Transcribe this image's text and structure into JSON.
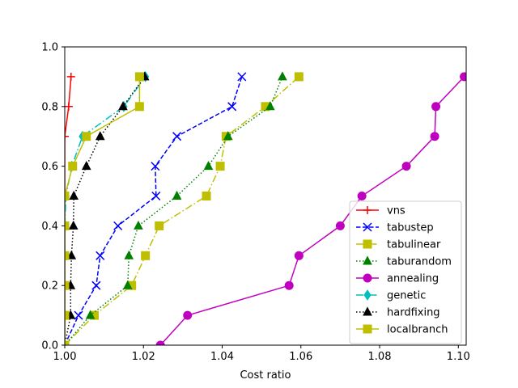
{
  "chart_data": {
    "type": "line",
    "title": "",
    "xlabel": "Cost ratio",
    "ylabel": "",
    "xlim": [
      1.0,
      1.102
    ],
    "ylim": [
      0.0,
      1.0
    ],
    "grid": false,
    "legend_position": "lower-right",
    "xticks": [
      "1.00",
      "1.02",
      "1.04",
      "1.06",
      "1.08",
      "1.10"
    ],
    "yticks": [
      "0.0",
      "0.2",
      "0.4",
      "0.6",
      "0.8",
      "1.0"
    ],
    "series": [
      {
        "name": "vns",
        "color": "#ff0000",
        "marker": "plus",
        "dash": "solid",
        "x": [
          1.0,
          1.0,
          1.001,
          1.0016
        ],
        "y": [
          0.0,
          0.7,
          0.8,
          0.9
        ]
      },
      {
        "name": "tabustep",
        "color": "#0000ff",
        "marker": "x",
        "dash": "dashed",
        "x": [
          1.0,
          1.0035,
          1.008,
          1.009,
          1.0135,
          1.0232,
          1.023,
          1.0285,
          1.0425,
          1.045
        ],
        "y": [
          0.0,
          0.1,
          0.2,
          0.3,
          0.4,
          0.5,
          0.6,
          0.7,
          0.8,
          0.9
        ]
      },
      {
        "name": "tabulinear",
        "color": "#bfbf00",
        "marker": "square",
        "dash": "dashdot",
        "x": [
          1.0,
          1.0075,
          1.017,
          1.0205,
          1.024,
          1.036,
          1.0395,
          1.041,
          1.051,
          1.0595
        ],
        "y": [
          0.0,
          0.1,
          0.2,
          0.3,
          0.4,
          0.5,
          0.6,
          0.7,
          0.8,
          0.9
        ]
      },
      {
        "name": "taburandom",
        "color": "#008000",
        "marker": "triangle",
        "dash": "dotted",
        "x": [
          1.0,
          1.0065,
          1.016,
          1.0163,
          1.0187,
          1.0285,
          1.0365,
          1.0415,
          1.0522,
          1.0553
        ],
        "y": [
          0.0,
          0.1,
          0.2,
          0.3,
          0.4,
          0.5,
          0.6,
          0.7,
          0.8,
          0.9
        ]
      },
      {
        "name": "annealing",
        "color": "#bf00bf",
        "marker": "circle",
        "dash": "solid",
        "x": [
          1.0243,
          1.0312,
          1.057,
          1.0595,
          1.07,
          1.0755,
          1.0868,
          1.094,
          1.0943,
          1.1015
        ],
        "y": [
          0.0,
          0.1,
          0.2,
          0.3,
          0.4,
          0.5,
          0.6,
          0.7,
          0.8,
          0.9
        ]
      },
      {
        "name": "genetic",
        "color": "#00bfbf",
        "marker": "diamond",
        "dash": "dashdot",
        "x": [
          1.0,
          1.0,
          1.0,
          1.0,
          1.0,
          1.0003,
          1.0018,
          1.0045,
          1.015,
          1.0205
        ],
        "y": [
          0.0,
          0.1,
          0.2,
          0.3,
          0.4,
          0.5,
          0.6,
          0.7,
          0.8,
          0.9
        ]
      },
      {
        "name": "hardfixing",
        "color": "#000000",
        "marker": "triangle",
        "dash": "dotted",
        "x": [
          1.0,
          1.0015,
          1.0015,
          1.0017,
          1.0022,
          1.0023,
          1.0055,
          1.009,
          1.0148,
          1.0203
        ],
        "y": [
          0.0,
          0.1,
          0.2,
          0.3,
          0.4,
          0.5,
          0.6,
          0.7,
          0.8,
          0.9
        ]
      },
      {
        "name": "localbranch",
        "color": "#bfbf00",
        "marker": "square",
        "dash": "solid",
        "x": [
          1.0,
          1.0,
          1.0,
          1.0,
          1.0,
          1.0,
          1.002,
          1.0055,
          1.019,
          1.019
        ],
        "y": [
          0.0,
          0.1,
          0.2,
          0.3,
          0.4,
          0.5,
          0.6,
          0.7,
          0.8,
          0.9
        ]
      }
    ]
  }
}
